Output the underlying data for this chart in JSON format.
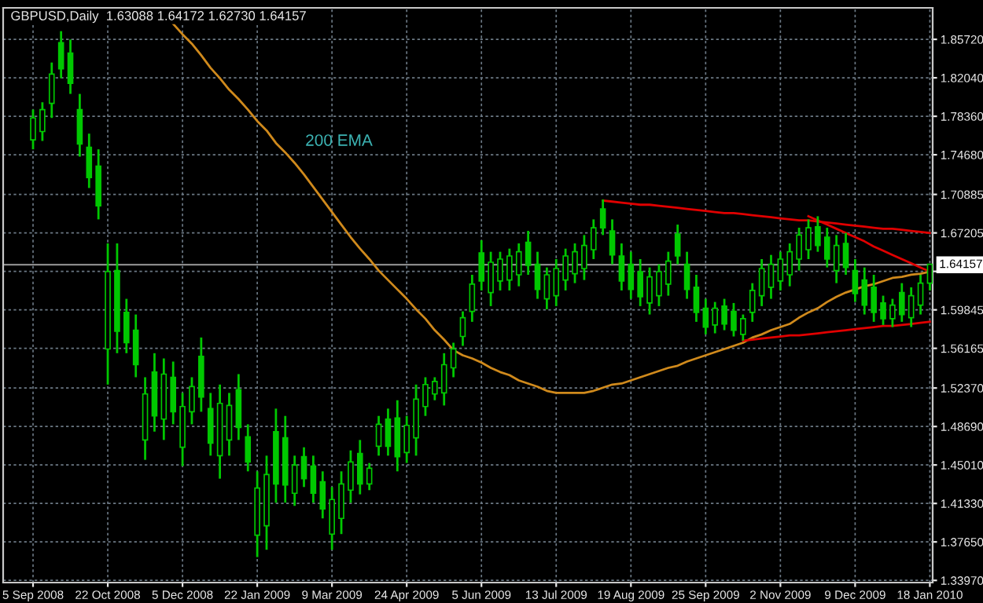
{
  "chart_data": {
    "type": "candlestick",
    "title": "GBPUSD,Daily  1.63088 1.64172 1.62730 1.64157",
    "color": "#00c800",
    "categories": [
      "5 Sep 2008",
      null,
      null,
      null,
      null,
      null,
      null,
      null,
      "22 Oct 2008",
      null,
      null,
      null,
      null,
      null,
      null,
      null,
      "5 Dec 2008",
      null,
      null,
      null,
      null,
      null,
      null,
      null,
      "22 Jan 2009",
      null,
      null,
      null,
      null,
      null,
      null,
      null,
      "9 Mar 2009",
      null,
      null,
      null,
      null,
      null,
      null,
      null,
      "24 Apr 2009",
      null,
      null,
      null,
      null,
      null,
      null,
      null,
      "5 Jun 2009",
      null,
      null,
      null,
      null,
      null,
      null,
      null,
      "13 Jul 2009",
      null,
      null,
      null,
      null,
      null,
      null,
      null,
      "19 Aug 2009",
      null,
      null,
      null,
      null,
      null,
      null,
      null,
      "25 Sep 2009",
      null,
      null,
      null,
      null,
      null,
      null,
      null,
      "2 Nov 2009",
      null,
      null,
      null,
      null,
      null,
      null,
      null,
      "9 Dec 2009",
      null,
      null,
      null,
      null,
      null,
      null,
      null,
      "18 Jan 2010"
    ],
    "ohlc": [
      [
        1.761,
        1.79,
        1.752,
        1.782
      ],
      [
        1.769,
        1.797,
        1.76,
        1.79
      ],
      [
        1.796,
        1.835,
        1.782,
        1.824
      ],
      [
        1.854,
        1.865,
        1.82,
        1.829
      ],
      [
        1.844,
        1.857,
        1.805,
        1.815
      ],
      [
        1.79,
        1.805,
        1.745,
        1.757
      ],
      [
        1.754,
        1.767,
        1.715,
        1.725
      ],
      [
        1.736,
        1.752,
        1.685,
        1.698
      ],
      [
        1.561,
        1.662,
        1.527,
        1.635
      ],
      [
        1.636,
        1.662,
        1.557,
        1.578
      ],
      [
        1.596,
        1.609,
        1.557,
        1.567
      ],
      [
        1.579,
        1.594,
        1.534,
        1.546
      ],
      [
        1.474,
        1.534,
        1.455,
        1.518
      ],
      [
        1.539,
        1.557,
        1.482,
        1.497
      ],
      [
        1.494,
        1.552,
        1.474,
        1.537
      ],
      [
        1.534,
        1.549,
        1.489,
        1.501
      ],
      [
        1.467,
        1.519,
        1.449,
        1.506
      ],
      [
        1.501,
        1.534,
        1.489,
        1.525
      ],
      [
        1.554,
        1.572,
        1.501,
        1.515
      ],
      [
        1.504,
        1.519,
        1.459,
        1.471
      ],
      [
        1.459,
        1.527,
        1.437,
        1.509
      ],
      [
        1.474,
        1.519,
        1.459,
        1.507
      ],
      [
        1.522,
        1.537,
        1.474,
        1.486
      ],
      [
        1.477,
        1.489,
        1.444,
        1.453
      ],
      [
        1.383,
        1.444,
        1.362,
        1.428
      ],
      [
        1.392,
        1.459,
        1.369,
        1.441
      ],
      [
        1.482,
        1.504,
        1.414,
        1.432
      ],
      [
        1.476,
        1.497,
        1.414,
        1.431
      ],
      [
        1.423,
        1.459,
        1.411,
        1.45
      ],
      [
        1.458,
        1.467,
        1.429,
        1.437
      ],
      [
        1.449,
        1.459,
        1.414,
        1.423
      ],
      [
        1.434,
        1.444,
        1.399,
        1.408
      ],
      [
        1.384,
        1.429,
        1.369,
        1.417
      ],
      [
        1.399,
        1.444,
        1.384,
        1.432
      ],
      [
        1.426,
        1.464,
        1.414,
        1.453
      ],
      [
        1.461,
        1.474,
        1.422,
        1.432
      ],
      [
        1.432,
        1.452,
        1.426,
        1.447
      ],
      [
        1.468,
        1.497,
        1.459,
        1.489
      ],
      [
        1.494,
        1.504,
        1.459,
        1.468
      ],
      [
        1.495,
        1.512,
        1.444,
        1.458
      ],
      [
        1.462,
        1.497,
        1.452,
        1.488
      ],
      [
        1.476,
        1.527,
        1.459,
        1.513
      ],
      [
        1.506,
        1.534,
        1.497,
        1.527
      ],
      [
        1.518,
        1.534,
        1.512,
        1.53
      ],
      [
        1.519,
        1.557,
        1.507,
        1.546
      ],
      [
        1.543,
        1.567,
        1.534,
        1.561
      ],
      [
        1.573,
        1.597,
        1.564,
        1.591
      ],
      [
        1.597,
        1.632,
        1.587,
        1.623
      ],
      [
        1.653,
        1.665,
        1.617,
        1.626
      ],
      [
        1.615,
        1.654,
        1.602,
        1.644
      ],
      [
        1.626,
        1.654,
        1.617,
        1.647
      ],
      [
        1.627,
        1.657,
        1.617,
        1.65
      ],
      [
        1.632,
        1.662,
        1.621,
        1.654
      ],
      [
        1.663,
        1.674,
        1.632,
        1.641
      ],
      [
        1.642,
        1.654,
        1.609,
        1.618
      ],
      [
        1.609,
        1.639,
        1.599,
        1.632
      ],
      [
        1.612,
        1.647,
        1.602,
        1.638
      ],
      [
        1.627,
        1.657,
        1.617,
        1.65
      ],
      [
        1.633,
        1.662,
        1.624,
        1.654
      ],
      [
        1.638,
        1.67,
        1.627,
        1.66
      ],
      [
        1.656,
        1.685,
        1.647,
        1.677
      ],
      [
        1.695,
        1.704,
        1.67,
        1.677
      ],
      [
        1.674,
        1.685,
        1.642,
        1.651
      ],
      [
        1.65,
        1.662,
        1.617,
        1.626
      ],
      [
        1.642,
        1.654,
        1.609,
        1.618
      ],
      [
        1.635,
        1.647,
        1.602,
        1.611
      ],
      [
        1.605,
        1.639,
        1.594,
        1.63
      ],
      [
        1.612,
        1.642,
        1.602,
        1.635
      ],
      [
        1.623,
        1.654,
        1.612,
        1.645
      ],
      [
        1.671,
        1.68,
        1.642,
        1.65
      ],
      [
        1.642,
        1.654,
        1.609,
        1.618
      ],
      [
        1.62,
        1.632,
        1.587,
        1.596
      ],
      [
        1.6,
        1.609,
        1.575,
        1.582
      ],
      [
        1.584,
        1.606,
        1.576,
        1.6
      ],
      [
        1.602,
        1.609,
        1.579,
        1.585
      ],
      [
        1.597,
        1.605,
        1.573,
        1.579
      ],
      [
        1.575,
        1.594,
        1.569,
        1.59
      ],
      [
        1.596,
        1.624,
        1.587,
        1.617
      ],
      [
        1.612,
        1.647,
        1.602,
        1.638
      ],
      [
        1.62,
        1.651,
        1.609,
        1.642
      ],
      [
        1.626,
        1.654,
        1.617,
        1.647
      ],
      [
        1.632,
        1.662,
        1.621,
        1.654
      ],
      [
        1.647,
        1.677,
        1.636,
        1.67
      ],
      [
        1.656,
        1.685,
        1.647,
        1.677
      ],
      [
        1.678,
        1.688,
        1.654,
        1.66
      ],
      [
        1.668,
        1.677,
        1.639,
        1.647
      ],
      [
        1.636,
        1.67,
        1.624,
        1.66
      ],
      [
        1.662,
        1.672,
        1.632,
        1.639
      ],
      [
        1.636,
        1.647,
        1.606,
        1.614
      ],
      [
        1.627,
        1.639,
        1.594,
        1.603
      ],
      [
        1.62,
        1.632,
        1.587,
        1.596
      ],
      [
        1.605,
        1.612,
        1.584,
        1.59
      ],
      [
        1.59,
        1.609,
        1.582,
        1.603
      ],
      [
        1.615,
        1.624,
        1.587,
        1.594
      ],
      [
        1.591,
        1.62,
        1.582,
        1.612
      ],
      [
        1.603,
        1.632,
        1.594,
        1.624
      ],
      [
        1.624,
        1.642,
        1.617,
        1.642
      ]
    ],
    "series": [
      {
        "type": "line",
        "name": "200 EMA",
        "color": "#d08a1c",
        "values": [
          null,
          null,
          null,
          null,
          null,
          null,
          null,
          null,
          null,
          null,
          null,
          null,
          null,
          null,
          null,
          1.872,
          1.862,
          1.853,
          1.842,
          1.83,
          1.82,
          1.809,
          1.8,
          1.79,
          1.779,
          1.77,
          1.758,
          1.749,
          1.739,
          1.728,
          1.716,
          1.704,
          1.692,
          1.68,
          1.668,
          1.657,
          1.647,
          1.636,
          1.627,
          1.618,
          1.609,
          1.599,
          1.59,
          1.579,
          1.57,
          1.56,
          1.555,
          1.552,
          1.548,
          1.543,
          1.539,
          1.536,
          1.531,
          1.528,
          1.525,
          1.521,
          1.519,
          1.519,
          1.519,
          1.519,
          1.521,
          1.524,
          1.527,
          1.528,
          1.531,
          1.534,
          1.537,
          1.54,
          1.543,
          1.545,
          1.549,
          1.552,
          1.555,
          1.558,
          1.561,
          1.564,
          1.567,
          1.572,
          1.575,
          1.579,
          1.582,
          1.585,
          1.591,
          1.596,
          1.6,
          1.606,
          1.611,
          1.615,
          1.618,
          1.621,
          1.623,
          1.626,
          1.629,
          1.63,
          1.632,
          1.633,
          1.635
        ]
      },
      {
        "type": "line",
        "color": "#e00000",
        "values": [
          null,
          null,
          null,
          null,
          null,
          null,
          null,
          null,
          null,
          null,
          null,
          null,
          null,
          null,
          null,
          null,
          null,
          null,
          null,
          null,
          null,
          null,
          null,
          null,
          null,
          null,
          null,
          null,
          null,
          null,
          null,
          null,
          null,
          null,
          null,
          null,
          null,
          null,
          null,
          null,
          null,
          null,
          null,
          null,
          null,
          null,
          null,
          null,
          null,
          null,
          null,
          null,
          null,
          null,
          null,
          null,
          null,
          null,
          null,
          null,
          null,
          1.703,
          1.702,
          1.701,
          1.7,
          1.699,
          1.699,
          1.698,
          1.697,
          1.696,
          1.695,
          1.694,
          1.693,
          1.692,
          1.691,
          1.691,
          1.69,
          1.689,
          1.688,
          1.687,
          1.686,
          1.685,
          1.684,
          1.684,
          1.683,
          1.682,
          1.681,
          1.68,
          1.679,
          1.678,
          1.677,
          1.676,
          1.676,
          1.675,
          1.674,
          1.673,
          1.672
        ]
      },
      {
        "type": "line",
        "color": "#e00000",
        "values": [
          null,
          null,
          null,
          null,
          null,
          null,
          null,
          null,
          null,
          null,
          null,
          null,
          null,
          null,
          null,
          null,
          null,
          null,
          null,
          null,
          null,
          null,
          null,
          null,
          null,
          null,
          null,
          null,
          null,
          null,
          null,
          null,
          null,
          null,
          null,
          null,
          null,
          null,
          null,
          null,
          null,
          null,
          null,
          null,
          null,
          null,
          null,
          null,
          null,
          null,
          null,
          null,
          null,
          null,
          null,
          null,
          null,
          null,
          null,
          null,
          null,
          null,
          null,
          null,
          null,
          null,
          null,
          null,
          null,
          null,
          null,
          null,
          null,
          null,
          null,
          null,
          null,
          null,
          null,
          null,
          null,
          null,
          null,
          1.688,
          1.684,
          1.68,
          1.676,
          1.672,
          1.668,
          1.664,
          1.659,
          1.655,
          1.651,
          1.647,
          1.643,
          1.639,
          1.635
        ]
      },
      {
        "type": "line",
        "color": "#e00000",
        "values": [
          null,
          null,
          null,
          null,
          null,
          null,
          null,
          null,
          null,
          null,
          null,
          null,
          null,
          null,
          null,
          null,
          null,
          null,
          null,
          null,
          null,
          null,
          null,
          null,
          null,
          null,
          null,
          null,
          null,
          null,
          null,
          null,
          null,
          null,
          null,
          null,
          null,
          null,
          null,
          null,
          null,
          null,
          null,
          null,
          null,
          null,
          null,
          null,
          null,
          null,
          null,
          null,
          null,
          null,
          null,
          null,
          null,
          null,
          null,
          null,
          null,
          null,
          null,
          null,
          null,
          null,
          null,
          null,
          null,
          null,
          null,
          null,
          null,
          null,
          null,
          null,
          1.569,
          1.57,
          1.571,
          1.572,
          1.573,
          1.574,
          1.574,
          1.575,
          1.576,
          1.577,
          1.578,
          1.579,
          1.58,
          1.581,
          1.582,
          1.583,
          1.583,
          1.584,
          1.585,
          1.586,
          1.587
        ]
      }
    ],
    "ylim": [
      1.3376,
      1.8873
    ],
    "yticks": [
      {
        "value": 1.8572,
        "label": "1.85720"
      },
      {
        "value": 1.8204,
        "label": "1.82040"
      },
      {
        "value": 1.7836,
        "label": "1.78360"
      },
      {
        "value": 1.7468,
        "label": "1.74680"
      },
      {
        "value": 1.70885,
        "label": "1.70885"
      },
      {
        "value": 1.67205,
        "label": "1.67205"
      },
      {
        "value": 1.63525,
        "label": null
      },
      {
        "value": 1.59845,
        "label": "1.59845"
      },
      {
        "value": 1.56165,
        "label": "1.56165"
      },
      {
        "value": 1.5237,
        "label": "1.52370"
      },
      {
        "value": 1.4869,
        "label": "1.48690"
      },
      {
        "value": 1.4501,
        "label": "1.45010"
      },
      {
        "value": 1.4133,
        "label": "1.41330"
      },
      {
        "value": 1.3765,
        "label": "1.37650"
      },
      {
        "value": 1.3397,
        "label": "1.33970"
      }
    ],
    "ref_lines": [
      {
        "axis": "y",
        "value": 1.64157,
        "label": "1.64157",
        "color": "#8a8a8a"
      }
    ],
    "grid": true,
    "legend": false
  }
}
